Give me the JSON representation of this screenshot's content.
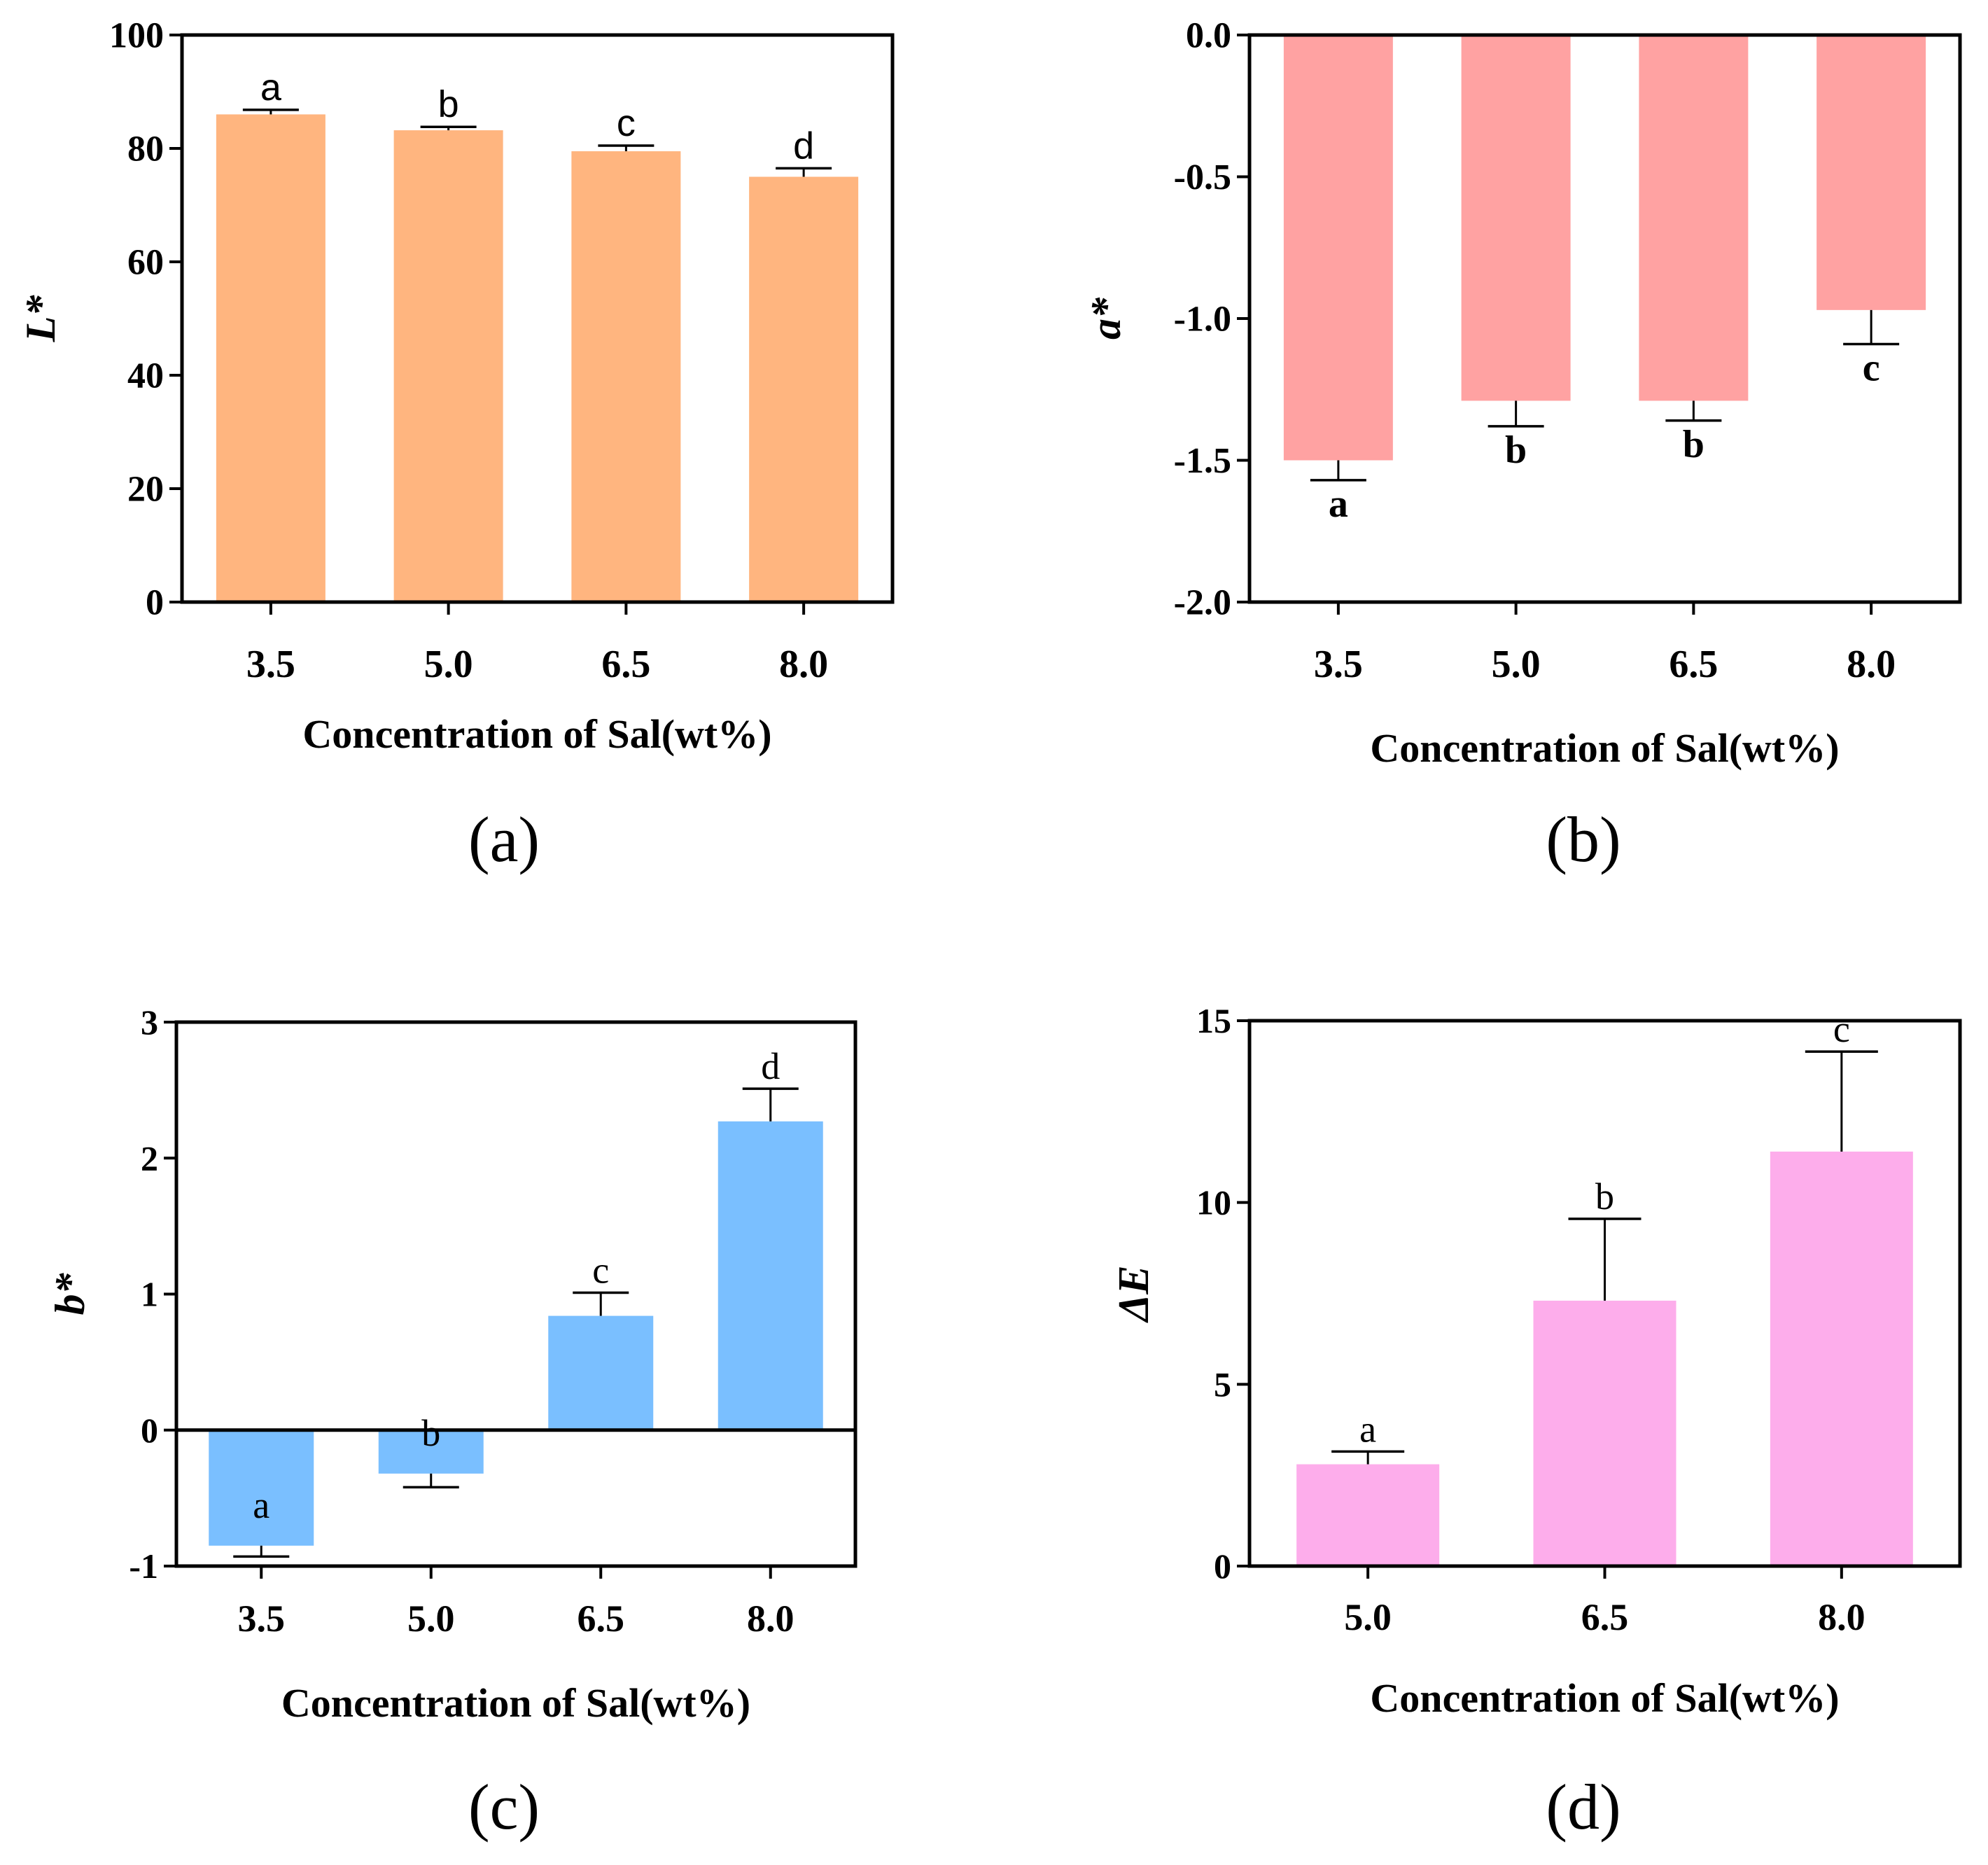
{
  "chart_data": [
    {
      "type": "bar",
      "panel_label": "(a)",
      "categories": [
        "3.5",
        "5.0",
        "6.5",
        "8.0"
      ],
      "values": [
        86.0,
        83.2,
        79.5,
        75.0
      ],
      "errors": [
        0.8,
        0.6,
        1.0,
        1.5
      ],
      "significance": [
        "a",
        "b",
        "c",
        "d"
      ],
      "xlabel": "Concentration of Sal(wt%)",
      "ylabel": "L*",
      "ylim": [
        0,
        100
      ],
      "yticks": [
        "0",
        "20",
        "40",
        "60",
        "80",
        "100"
      ],
      "color": "#FFB57F"
    },
    {
      "type": "bar",
      "panel_label": "(b)",
      "categories": [
        "3.5",
        "5.0",
        "6.5",
        "8.0"
      ],
      "values": [
        -1.5,
        -1.29,
        -1.29,
        -0.97
      ],
      "errors": [
        0.07,
        0.09,
        0.07,
        0.12
      ],
      "significance": [
        "a",
        "b",
        "b",
        "c"
      ],
      "xlabel": "Concentration of Sal(wt%)",
      "ylabel": "a*",
      "ylim": [
        -2.0,
        0.0
      ],
      "yticks": [
        "-2.0",
        "-1.5",
        "-1.0",
        "-0.5",
        "0.0"
      ],
      "color": "#FFA2A2"
    },
    {
      "type": "bar",
      "panel_label": "(c)",
      "categories": [
        "3.5",
        "5.0",
        "6.5",
        "8.0"
      ],
      "values": [
        -0.85,
        -0.32,
        0.84,
        2.27
      ],
      "errors": [
        0.08,
        0.1,
        0.17,
        0.24
      ],
      "significance": [
        "a",
        "b",
        "c",
        "d"
      ],
      "xlabel": "Concentration of Sal(wt%)",
      "ylabel": "b*",
      "ylim": [
        -1,
        3
      ],
      "yticks": [
        "-1",
        "0",
        "1",
        "2",
        "3"
      ],
      "color": "#7ABFFF"
    },
    {
      "type": "bar",
      "panel_label": "(d)",
      "categories": [
        "5.0",
        "6.5",
        "8.0"
      ],
      "values": [
        2.8,
        7.3,
        11.4
      ],
      "errors": [
        0.35,
        2.25,
        2.75
      ],
      "significance": [
        "a",
        "b",
        "c"
      ],
      "xlabel": "Concentration of Sal(wt%)",
      "ylabel": "ΔE",
      "ylim": [
        0,
        15
      ],
      "yticks": [
        "0",
        "5",
        "10",
        "15"
      ],
      "color": "#FDADEB"
    }
  ]
}
